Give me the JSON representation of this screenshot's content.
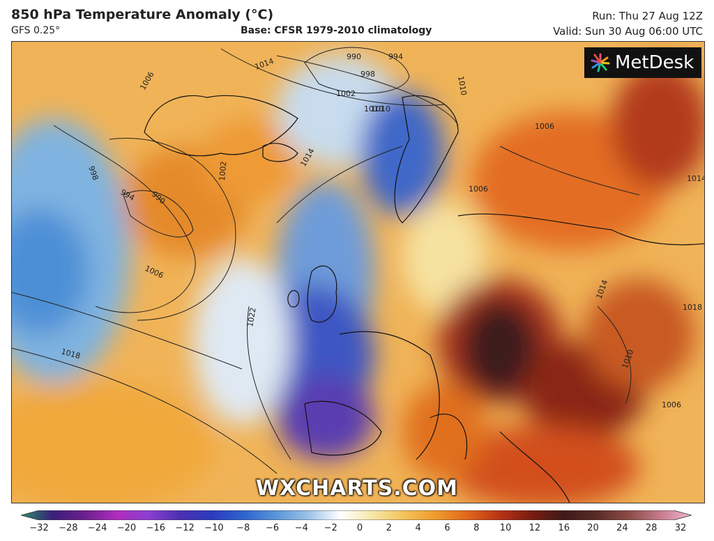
{
  "header": {
    "title": "850 hPa Temperature Anomaly (°C)",
    "model": "GFS 0.25°",
    "base": "Base: CFSR 1979-2010 climatology",
    "run": "Run: Thu 27 Aug 12Z",
    "valid": "Valid: Sun 30 Aug 06:00 UTC"
  },
  "logo": {
    "text": "MetDesk",
    "icon": "metdesk-star-icon"
  },
  "watermark": "WXCHARTS.COM",
  "colorbar": {
    "ticks": [
      "−32",
      "−28",
      "−24",
      "−20",
      "−16",
      "−12",
      "−10",
      "−8",
      "−6",
      "−4",
      "−2",
      "0",
      "2",
      "4",
      "6",
      "8",
      "10",
      "12",
      "16",
      "20",
      "24",
      "28",
      "32"
    ],
    "colors": [
      "#2a8f6a",
      "#3a1f7a",
      "#6b1f8e",
      "#b02dbd",
      "#8b3fd1",
      "#4a2fb0",
      "#2a3bbf",
      "#2f64cf",
      "#5a95d9",
      "#9cc3e8",
      "#ffffff",
      "#f7e7a8",
      "#f3c25a",
      "#ee9a2b",
      "#e1651b",
      "#b73214",
      "#7a1c12",
      "#3e1a18",
      "#5a2a26",
      "#8a4a46",
      "#c47a8a",
      "#f2b6cf"
    ]
  },
  "map": {
    "isobar_labels": [
      "1018",
      "1022",
      "998",
      "994",
      "990",
      "1006",
      "1002",
      "1014",
      "1010",
      "1006",
      "990",
      "998",
      "994",
      "1002",
      "1010",
      "1014",
      "1006",
      "1006",
      "1014",
      "1018",
      "1010",
      "1010",
      "1006",
      "1014"
    ]
  }
}
